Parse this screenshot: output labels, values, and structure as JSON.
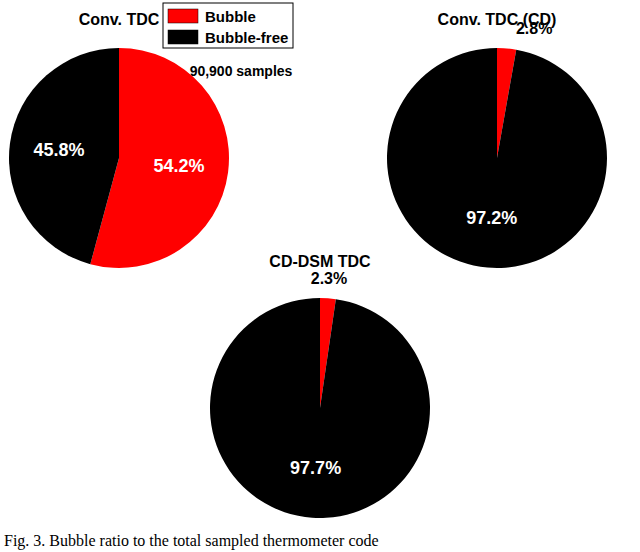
{
  "chart_data": [
    {
      "type": "pie",
      "title": "Conv. TDC",
      "categories": [
        "Bubble",
        "Bubble-free"
      ],
      "values": [
        54.2,
        45.8
      ],
      "value_labels": [
        "54.2%",
        "45.8%"
      ],
      "colors": [
        "#ff0000",
        "#000000"
      ],
      "data_labels": true,
      "legend": "top",
      "annotations": [
        "90,900 samples"
      ]
    },
    {
      "type": "pie",
      "title": "Conv. TDC (CD)",
      "categories": [
        "Bubble",
        "Bubble-free"
      ],
      "values": [
        2.8,
        97.2
      ],
      "value_labels": [
        "2.8%",
        "97.2%"
      ],
      "colors": [
        "#ff0000",
        "#000000"
      ],
      "data_labels": true
    },
    {
      "type": "pie",
      "title": "CD-DSM TDC",
      "categories": [
        "Bubble",
        "Bubble-free"
      ],
      "values": [
        2.3,
        97.7
      ],
      "value_labels": [
        "2.3%",
        "97.7%"
      ],
      "colors": [
        "#ff0000",
        "#000000"
      ],
      "data_labels": true
    }
  ],
  "caption": "Fig. 3. Bubble ratio to the total sampled thermometer code"
}
